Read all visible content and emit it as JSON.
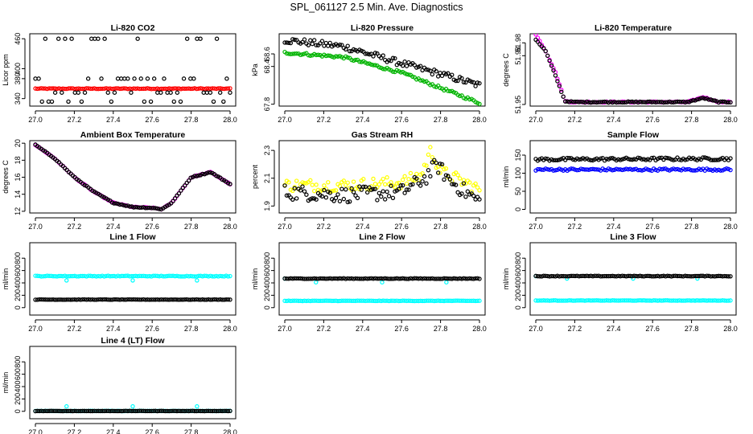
{
  "title": "SPL_061127  2.5 Min. Ave. Diagnostics",
  "chart_data": [
    {
      "type": "scatter",
      "title": "Li-820 CO2",
      "ylabel": "Licor ppm",
      "xlim": [
        27.0,
        28.0
      ],
      "ylim": [
        325,
        470
      ],
      "xticks": [
        "27.0",
        "27.2",
        "27.4",
        "27.6",
        "27.8",
        "28.0"
      ],
      "yticks": [
        "340",
        "380",
        "400",
        "460"
      ],
      "series": [
        {
          "name": "co2-flat",
          "color": "#ff0000",
          "pattern": "flat",
          "y": [
            [
              27.0,
              360
            ],
            [
              28.0,
              360
            ]
          ],
          "noise": 0.8
        },
        {
          "name": "co2-levels",
          "color": "#000000",
          "pattern": "levels",
          "levels": [
            334,
            352,
            380,
            460
          ]
        }
      ]
    },
    {
      "type": "scatter",
      "title": "Li-820 Pressure",
      "ylabel": "kPa",
      "xlim": [
        27.0,
        28.0
      ],
      "ylim": [
        67.77,
        68.92
      ],
      "xticks": [
        "27.0",
        "27.2",
        "27.4",
        "27.6",
        "27.8",
        "28.0"
      ],
      "yticks": [
        "67.8",
        "68.4",
        "68.6"
      ],
      "series": [
        {
          "name": "pressure-black",
          "color": "#000000",
          "pattern": "curve",
          "y": [
            [
              27.0,
              68.82
            ],
            [
              27.3,
              68.72
            ],
            [
              27.6,
              68.45
            ],
            [
              27.8,
              68.28
            ],
            [
              28.0,
              68.1
            ]
          ],
          "noise": 0.05
        },
        {
          "name": "pressure-green",
          "color": "#00b400",
          "pattern": "curve",
          "y": [
            [
              27.0,
              68.62
            ],
            [
              27.3,
              68.55
            ],
            [
              27.6,
              68.3
            ],
            [
              27.8,
              68.06
            ],
            [
              28.0,
              67.82
            ]
          ],
          "noise": 0.02
        }
      ]
    },
    {
      "type": "scatter",
      "title": "Li-820 Temperature",
      "ylabel": "degrees C",
      "xlim": [
        27.0,
        28.0
      ],
      "ylim": [
        51.949,
        51.9935
      ],
      "xticks": [
        "27.0",
        "27.2",
        "27.4",
        "27.6",
        "27.8",
        "28.0"
      ],
      "yticks": [
        "51.95",
        "51.98",
        "51.98"
      ],
      "series": [
        {
          "name": "temp-magenta",
          "color": "#ff00ff",
          "pattern": "curve",
          "y": [
            [
              27.0,
              51.993
            ],
            [
              27.05,
              51.983
            ],
            [
              27.1,
              51.97
            ],
            [
              27.15,
              51.952
            ],
            [
              27.2,
              51.9515
            ],
            [
              27.78,
              51.9515
            ],
            [
              27.86,
              51.9545
            ],
            [
              27.94,
              51.9515
            ],
            [
              28.0,
              51.9515
            ]
          ],
          "noise": 0.0003
        },
        {
          "name": "temp-black",
          "color": "#000000",
          "pattern": "curve",
          "y": [
            [
              27.0,
              51.99
            ],
            [
              27.05,
              51.983
            ],
            [
              27.1,
              51.968
            ],
            [
              27.15,
              51.952
            ],
            [
              27.2,
              51.9515
            ],
            [
              27.78,
              51.9515
            ],
            [
              27.86,
              51.954
            ],
            [
              27.94,
              51.9515
            ],
            [
              28.0,
              51.9515
            ]
          ],
          "noise": 0.0003
        }
      ]
    },
    {
      "type": "scatter",
      "title": "Ambient Box Temperature",
      "ylabel": "degrees C",
      "xlim": [
        27.0,
        28.0
      ],
      "ylim": [
        11.8,
        20.3
      ],
      "xticks": [
        "27.0",
        "27.2",
        "27.4",
        "27.6",
        "27.8",
        "28.0"
      ],
      "yticks": [
        "12",
        "14",
        "16",
        "18",
        "20"
      ],
      "series": [
        {
          "name": "box-magenta",
          "color": "#ff00ff",
          "pattern": "curve",
          "y": [
            [
              27.0,
              19.8
            ],
            [
              27.1,
              18.2
            ],
            [
              27.2,
              16.0
            ],
            [
              27.3,
              14.3
            ],
            [
              27.4,
              13.0
            ],
            [
              27.5,
              12.5
            ],
            [
              27.6,
              12.4
            ],
            [
              27.65,
              12.25
            ],
            [
              27.7,
              13.0
            ],
            [
              27.75,
              14.5
            ],
            [
              27.8,
              16.0
            ],
            [
              27.9,
              16.6
            ],
            [
              28.0,
              15.2
            ]
          ],
          "noise": 0.05
        },
        {
          "name": "box-black",
          "color": "#000000",
          "pattern": "curve",
          "y": [
            [
              27.0,
              19.8
            ],
            [
              27.1,
              18.2
            ],
            [
              27.2,
              16.0
            ],
            [
              27.3,
              14.3
            ],
            [
              27.4,
              13.0
            ],
            [
              27.5,
              12.5
            ],
            [
              27.6,
              12.4
            ],
            [
              27.65,
              12.25
            ],
            [
              27.7,
              13.0
            ],
            [
              27.75,
              14.5
            ],
            [
              27.8,
              16.0
            ],
            [
              27.9,
              16.6
            ],
            [
              28.0,
              15.2
            ]
          ],
          "noise": 0.05
        }
      ]
    },
    {
      "type": "scatter",
      "title": "Gas Stream RH",
      "ylabel": "percent",
      "xlim": [
        27.0,
        28.0
      ],
      "ylim": [
        1.85,
        2.37
      ],
      "xticks": [
        "27.0",
        "27.2",
        "27.4",
        "27.6",
        "27.8",
        "28.0"
      ],
      "yticks": [
        "1.9",
        "2.1",
        "2.3"
      ],
      "series": [
        {
          "name": "rh-yellow",
          "color": "#ffff00",
          "pattern": "curve",
          "y": [
            [
              27.0,
              2.05
            ],
            [
              27.3,
              2.05
            ],
            [
              27.6,
              2.07
            ],
            [
              27.7,
              2.12
            ],
            [
              27.75,
              2.3
            ],
            [
              27.8,
              2.15
            ],
            [
              28.0,
              2.02
            ]
          ],
          "noise": 0.045
        },
        {
          "name": "rh-black",
          "color": "#000000",
          "pattern": "curve",
          "y": [
            [
              27.0,
              2.0
            ],
            [
              27.3,
              1.98
            ],
            [
              27.6,
              2.0
            ],
            [
              27.72,
              2.1
            ],
            [
              27.78,
              2.2
            ],
            [
              27.85,
              2.08
            ],
            [
              28.0,
              1.93
            ]
          ],
          "noise": 0.055
        }
      ]
    },
    {
      "type": "scatter",
      "title": "Sample Flow",
      "ylabel": "ml/min",
      "xlim": [
        27.0,
        28.0
      ],
      "ylim": [
        -10,
        190
      ],
      "xticks": [
        "27.0",
        "27.2",
        "27.4",
        "27.6",
        "27.8",
        "28.0"
      ],
      "yticks": [
        "0",
        "50",
        "100",
        "150"
      ],
      "series": [
        {
          "name": "sample-blue",
          "color": "#0000ff",
          "pattern": "flat",
          "y": [
            [
              27.0,
              110
            ],
            [
              28.0,
              110
            ]
          ],
          "noise": 3
        },
        {
          "name": "sample-black",
          "color": "#000000",
          "pattern": "flat",
          "y": [
            [
              27.0,
              138
            ],
            [
              28.0,
              140
            ]
          ],
          "noise": 4
        }
      ]
    },
    {
      "type": "scatter",
      "title": "Line 1 Flow",
      "ylabel": "ml/min",
      "xlim": [
        27.0,
        28.0
      ],
      "ylim": [
        -120,
        1050
      ],
      "xticks": [
        "27.0",
        "27.2",
        "27.4",
        "27.6",
        "27.8",
        "28.0"
      ],
      "yticks": [
        "0",
        "200",
        "400",
        "600",
        "800"
      ],
      "series": [
        {
          "name": "line1-cyan",
          "color": "#00ffff",
          "pattern": "flat",
          "y": [
            [
              27.0,
              510
            ],
            [
              28.0,
              510
            ]
          ],
          "noise": 6,
          "outliers": [
            [
              27.16,
              440
            ],
            [
              27.5,
              440
            ],
            [
              27.83,
              440
            ]
          ]
        },
        {
          "name": "line1-black",
          "color": "#000000",
          "pattern": "flat",
          "y": [
            [
              27.0,
              130
            ],
            [
              28.0,
              130
            ]
          ],
          "noise": 3
        }
      ]
    },
    {
      "type": "scatter",
      "title": "Line 2 Flow",
      "ylabel": "ml/min",
      "xlim": [
        27.0,
        28.0
      ],
      "ylim": [
        -120,
        1050
      ],
      "xticks": [
        "27.0",
        "27.2",
        "27.4",
        "27.6",
        "27.8",
        "28.0"
      ],
      "yticks": [
        "0",
        "200",
        "400",
        "600",
        "800"
      ],
      "series": [
        {
          "name": "line2-cyan",
          "color": "#00ffff",
          "pattern": "flat",
          "y": [
            [
              27.0,
              110
            ],
            [
              28.0,
              110
            ]
          ],
          "noise": 3,
          "outliers": [
            [
              27.0,
              470
            ],
            [
              27.16,
              410
            ],
            [
              27.5,
              410
            ],
            [
              27.83,
              410
            ]
          ]
        },
        {
          "name": "line2-black",
          "color": "#000000",
          "pattern": "flat",
          "y": [
            [
              27.0,
              470
            ],
            [
              28.0,
              470
            ]
          ],
          "noise": 5
        }
      ]
    },
    {
      "type": "scatter",
      "title": "Line 3 Flow",
      "ylabel": "ml/min",
      "xlim": [
        27.0,
        28.0
      ],
      "ylim": [
        -120,
        1050
      ],
      "xticks": [
        "27.0",
        "27.2",
        "27.4",
        "27.6",
        "27.8",
        "28.0"
      ],
      "yticks": [
        "0",
        "200",
        "400",
        "600",
        "800"
      ],
      "series": [
        {
          "name": "line3-cyan",
          "color": "#00ffff",
          "pattern": "flat",
          "y": [
            [
              27.0,
              115
            ],
            [
              28.0,
              115
            ]
          ],
          "noise": 3,
          "outliers": [
            [
              27.0,
              510
            ],
            [
              27.16,
              470
            ],
            [
              27.5,
              470
            ],
            [
              27.83,
              470
            ]
          ]
        },
        {
          "name": "line3-black",
          "color": "#000000",
          "pattern": "flat",
          "y": [
            [
              27.0,
              510
            ],
            [
              28.0,
              510
            ]
          ],
          "noise": 5
        }
      ]
    },
    {
      "type": "scatter",
      "title": "Line 4 (LT) Flow",
      "ylabel": "ml/min",
      "xlim": [
        27.0,
        28.0
      ],
      "ylim": [
        -120,
        1050
      ],
      "xticks": [
        "27.0",
        "27.2",
        "27.4",
        "27.6",
        "27.8",
        "28.0"
      ],
      "yticks": [
        "0",
        "200",
        "400",
        "600",
        "800"
      ],
      "series": [
        {
          "name": "line4-cyan",
          "color": "#00ffff",
          "pattern": "flat",
          "y": [
            [
              27.0,
              5
            ],
            [
              28.0,
              5
            ]
          ],
          "noise": 2,
          "outliers": [
            [
              27.16,
              80
            ],
            [
              27.5,
              80
            ],
            [
              27.83,
              80
            ]
          ]
        },
        {
          "name": "line4-black",
          "color": "#000000",
          "pattern": "flat",
          "y": [
            [
              27.0,
              5
            ],
            [
              28.0,
              5
            ]
          ],
          "noise": 2
        }
      ]
    }
  ]
}
